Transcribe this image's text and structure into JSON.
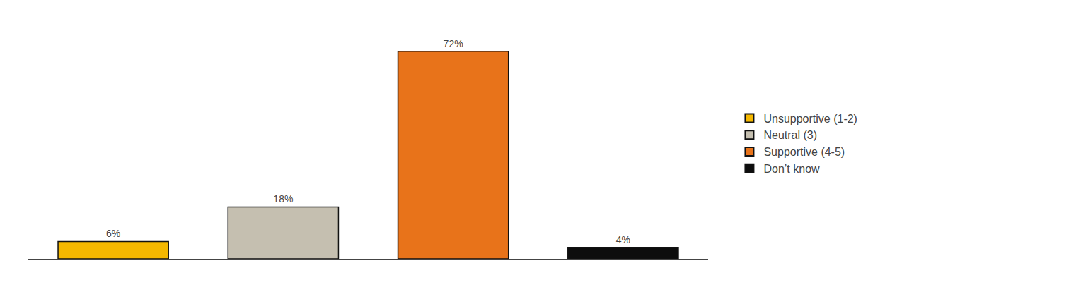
{
  "chart_data": {
    "type": "bar",
    "categories": [
      "Unsupportive (1-2)",
      "Neutral (3)",
      "Supportive (4-5)",
      "Don’t know"
    ],
    "values": [
      6,
      18,
      72,
      4
    ],
    "value_labels": [
      "6%",
      "18%",
      "72%",
      "4%"
    ],
    "colors": [
      "#F5B800",
      "#C5BFB0",
      "#E8731A",
      "#0D0D0D"
    ],
    "ylim": [
      0,
      80
    ],
    "data_labels": true,
    "tick_labels": false,
    "grid": false,
    "legend": "right"
  }
}
